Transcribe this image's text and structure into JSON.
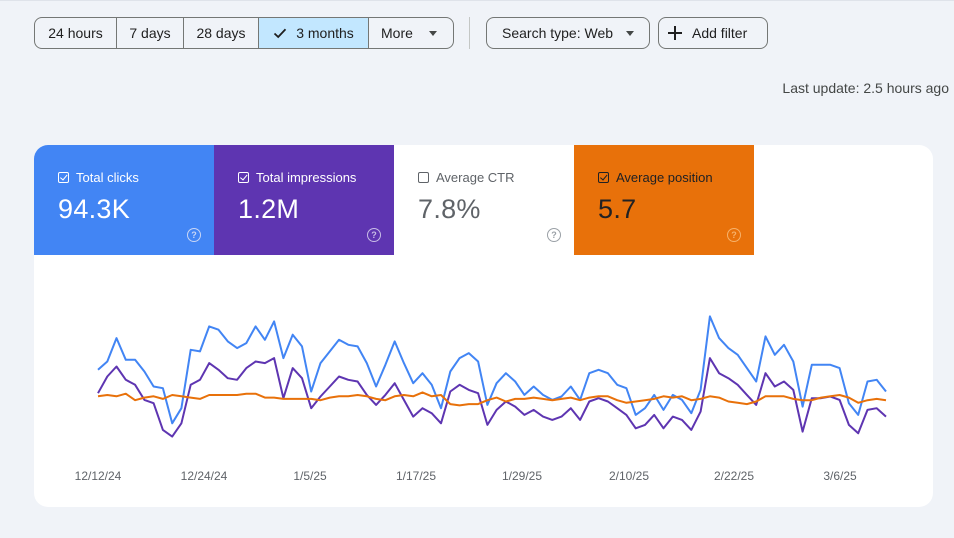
{
  "date_range": {
    "options": [
      "24 hours",
      "7 days",
      "28 days",
      "3 months",
      "More"
    ],
    "selected": "3 months"
  },
  "search_type_label": "Search type: Web",
  "add_filter_label": "Add filter",
  "last_update": "Last update: 2.5 hours ago",
  "metrics": {
    "clicks": {
      "label": "Total clicks",
      "value": "94.3K",
      "checked": true,
      "color": "#4285f4"
    },
    "impressions": {
      "label": "Total impressions",
      "value": "1.2M",
      "checked": true,
      "color": "#5e35b1"
    },
    "ctr": {
      "label": "Average CTR",
      "value": "7.8%",
      "checked": false,
      "color": "#ffffff"
    },
    "position": {
      "label": "Average position",
      "value": "5.7",
      "checked": true,
      "color": "#e8710a"
    }
  },
  "chart_data": {
    "type": "line",
    "x_tick_labels": [
      "12/12/24",
      "12/24/24",
      "1/5/25",
      "1/17/25",
      "1/29/25",
      "2/10/25",
      "2/22/25",
      "3/6/25"
    ],
    "grid": false,
    "y_axis_shown": false,
    "series": [
      {
        "name": "Total clicks",
        "color": "#4285f4",
        "values": [
          57,
          62,
          76,
          63,
          63,
          56,
          47,
          46,
          25,
          34,
          69,
          68,
          83,
          81,
          74,
          70,
          73,
          83,
          75,
          86,
          64,
          78,
          71,
          44,
          61,
          68,
          75,
          72,
          71,
          61,
          47,
          60,
          74,
          61,
          49,
          55,
          48,
          34,
          56,
          64,
          67,
          62,
          36,
          49,
          55,
          50,
          42,
          47,
          42,
          39,
          41,
          47,
          39,
          55,
          57,
          55,
          48,
          46,
          30,
          34,
          42,
          33,
          42,
          39,
          31,
          45,
          89,
          76,
          70,
          66,
          58,
          50,
          77,
          66,
          72,
          62,
          35,
          60,
          60,
          60,
          58,
          37,
          30,
          50,
          51,
          44
        ]
      },
      {
        "name": "Total impressions",
        "color": "#5e35b1",
        "values": [
          43,
          53,
          59,
          51,
          48,
          39,
          37,
          21,
          17,
          25,
          48,
          51,
          61,
          57,
          52,
          51,
          58,
          62,
          61,
          64,
          40,
          58,
          52,
          34,
          41,
          47,
          53,
          51,
          50,
          42,
          36,
          42,
          49,
          39,
          29,
          34,
          31,
          25,
          44,
          48,
          45,
          43,
          24,
          33,
          38,
          35,
          30,
          33,
          29,
          27,
          29,
          34,
          27,
          38,
          40,
          38,
          34,
          30,
          22,
          24,
          30,
          22,
          29,
          27,
          21,
          32,
          64,
          55,
          52,
          48,
          42,
          36,
          55,
          47,
          50,
          45,
          20,
          40,
          40,
          41,
          39,
          24,
          19,
          33,
          34,
          29
        ]
      },
      {
        "name": "Average position",
        "color": "#e8710a",
        "values": [
          6.0,
          5.9,
          6.0,
          5.8,
          6.3,
          6.1,
          6.0,
          6.2,
          5.9,
          6.0,
          6.1,
          6.2,
          5.9,
          5.9,
          5.9,
          5.9,
          5.8,
          5.8,
          6.1,
          6.1,
          6.2,
          6.2,
          6.2,
          6.2,
          6.3,
          6.1,
          6.0,
          6.0,
          5.9,
          6.0,
          6.2,
          6.3,
          6.0,
          5.9,
          6.0,
          5.7,
          6.0,
          5.9,
          6.6,
          6.7,
          6.6,
          6.6,
          6.3,
          6.1,
          6.4,
          6.2,
          6.2,
          6.1,
          6.2,
          6.3,
          6.2,
          6.1,
          6.3,
          6.1,
          6.0,
          6.0,
          6.3,
          6.5,
          6.4,
          6.3,
          6.2,
          6.0,
          6.1,
          6.0,
          6.3,
          6.2,
          6.0,
          6.1,
          6.4,
          6.5,
          6.6,
          6.4,
          6.0,
          6.0,
          6.0,
          6.2,
          6.3,
          6.3,
          6.1,
          6.0,
          5.9,
          6.1,
          6.5,
          6.3,
          6.2,
          6.3
        ]
      }
    ]
  }
}
